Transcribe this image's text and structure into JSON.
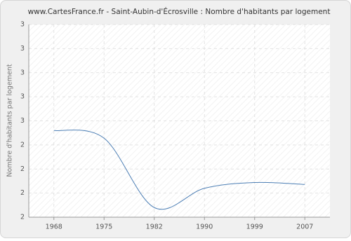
{
  "chart_data": {
    "type": "line",
    "title": "www.CartesFrance.fr - Saint-Aubin-d'Écrosville : Nombre d'habitants par logement",
    "y_label": "Nombre d'habitants par logement",
    "categories": [
      "1968",
      "1975",
      "1982",
      "1990",
      "1999",
      "2007"
    ],
    "values": [
      2.45,
      2.41,
      2.05,
      2.15,
      2.18,
      2.17
    ],
    "color": "#4d7fb5",
    "ylim": [
      2,
      3
    ],
    "yticks": [
      {
        "value": 2,
        "label": "2"
      },
      {
        "value": 2.125,
        "label": "2"
      },
      {
        "value": 2.25,
        "label": "2"
      },
      {
        "value": 2.375,
        "label": "2"
      },
      {
        "value": 2.5,
        "label": "3"
      },
      {
        "value": 2.625,
        "label": "3"
      },
      {
        "value": 2.75,
        "label": "3"
      },
      {
        "value": 2.875,
        "label": "3"
      },
      {
        "value": 3,
        "label": "3"
      }
    ],
    "grid": true
  }
}
